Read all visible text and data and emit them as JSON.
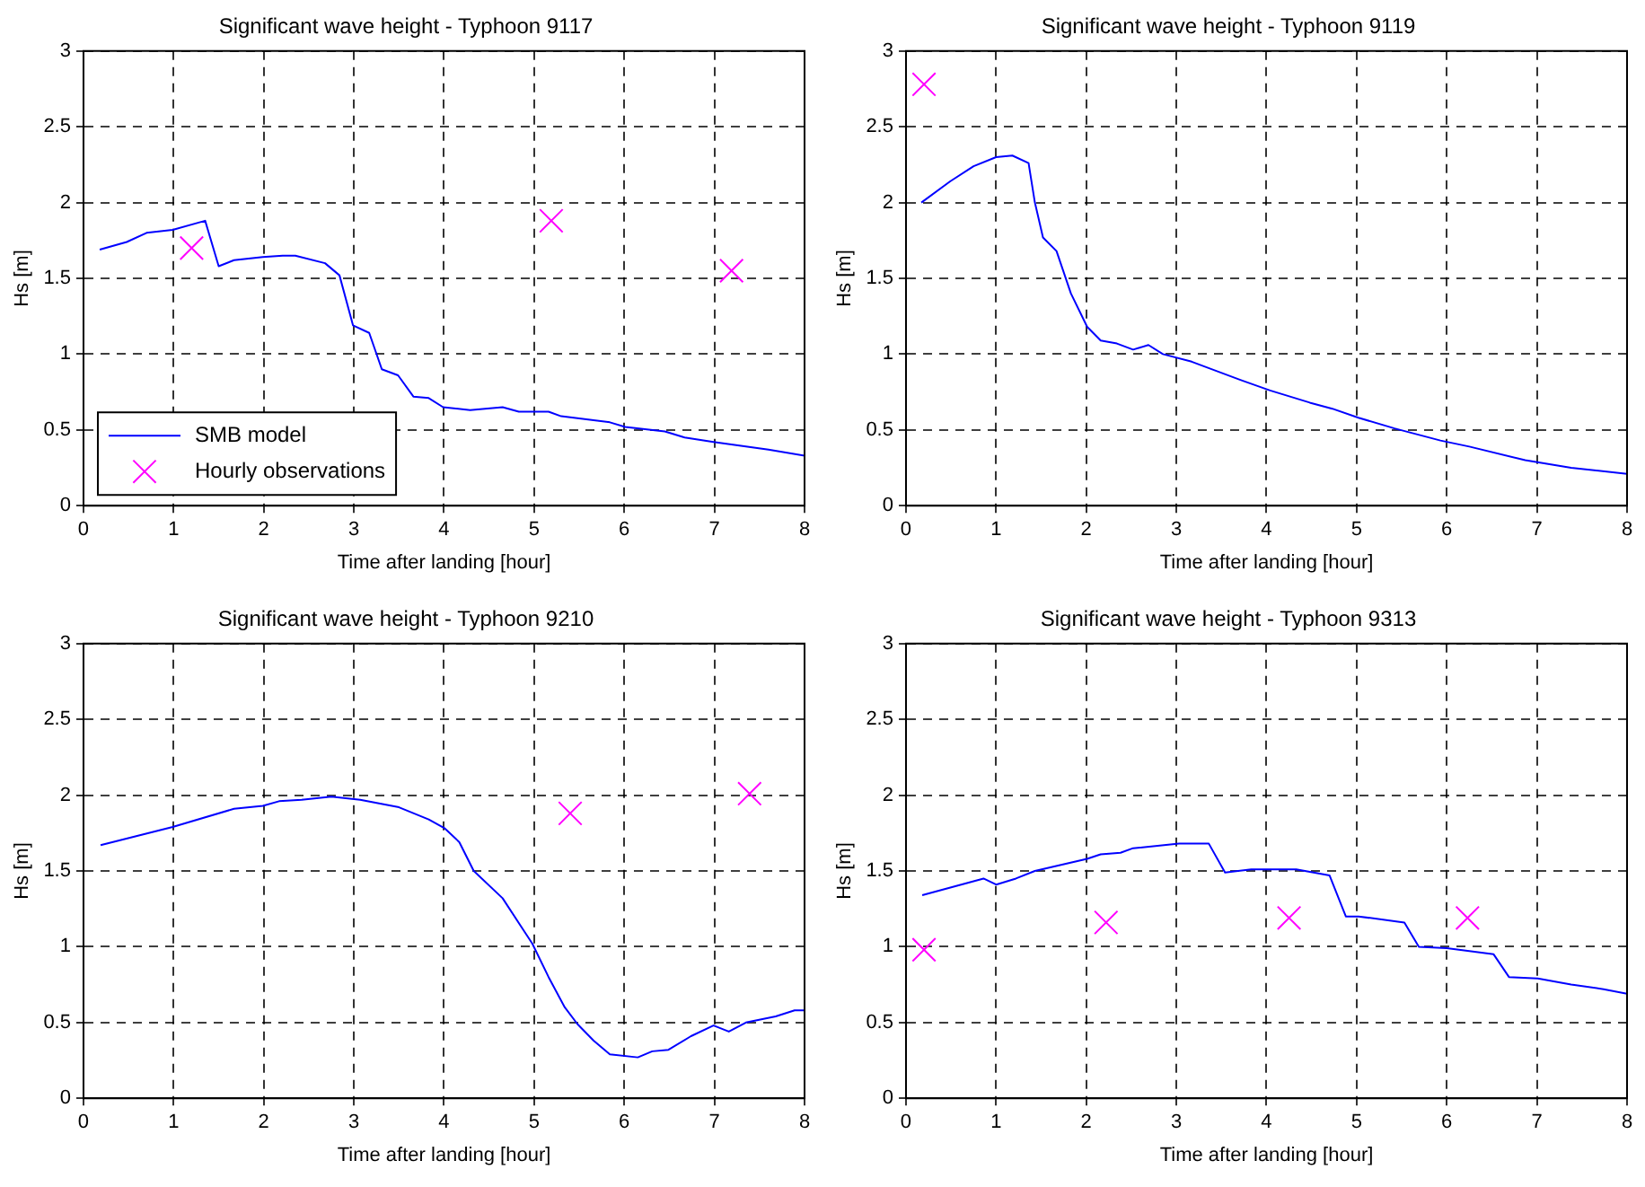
{
  "chart_data": [
    {
      "type": "line",
      "title": "Significant wave height - Typhoon 9117",
      "xlabel": "Time after landing [hour]",
      "ylabel": "Hs [m]",
      "xlim": [
        0,
        8
      ],
      "xticks": [
        0,
        1,
        2,
        3,
        4,
        5,
        6,
        7,
        8
      ],
      "ylim": [
        0,
        3
      ],
      "yticks": [
        0,
        0.5,
        1,
        1.5,
        2,
        2.5,
        3
      ],
      "grid": true,
      "legend": "bottom left",
      "series": [
        {
          "name": "SMB model",
          "color": "#0000ff",
          "marker": "none",
          "x": [
            0.18,
            0.48,
            0.7,
            0.99,
            1.35,
            1.5,
            1.67,
            1.99,
            2.21,
            2.35,
            2.68,
            2.84,
            2.99,
            3.17,
            3.31,
            3.49,
            3.66,
            3.83,
            3.99,
            4.29,
            4.65,
            4.83,
            5.16,
            5.3,
            5.84,
            6.01,
            6.45,
            6.67,
            6.99,
            7.6,
            8.0
          ],
          "values": [
            1.69,
            1.74,
            1.8,
            1.82,
            1.88,
            1.58,
            1.62,
            1.64,
            1.65,
            1.65,
            1.6,
            1.52,
            1.19,
            1.14,
            0.9,
            0.86,
            0.72,
            0.71,
            0.65,
            0.63,
            0.65,
            0.62,
            0.62,
            0.59,
            0.55,
            0.52,
            0.49,
            0.45,
            0.42,
            0.37,
            0.33
          ]
        },
        {
          "name": "Hourly observations",
          "type": "scatter",
          "color": "#ff00ff",
          "marker": "cross",
          "x": [
            1.2,
            5.19,
            7.19
          ],
          "values": [
            1.7,
            1.88,
            1.55
          ]
        }
      ]
    },
    {
      "type": "line",
      "title": "Significant wave height - Typhoon 9119",
      "xlabel": "Time after landing [hour]",
      "ylabel": "Hs [m]",
      "xlim": [
        0,
        8
      ],
      "xticks": [
        0,
        1,
        2,
        3,
        4,
        5,
        6,
        7,
        8
      ],
      "ylim": [
        0,
        3
      ],
      "yticks": [
        0,
        0.5,
        1,
        1.5,
        2,
        2.5,
        3
      ],
      "grid": true,
      "legend": false,
      "series": [
        {
          "color": "#0000ff",
          "marker": "none",
          "x": [
            0.17,
            0.49,
            0.75,
            1.0,
            1.18,
            1.36,
            1.43,
            1.52,
            1.67,
            1.83,
            2.01,
            2.16,
            2.34,
            2.52,
            2.69,
            2.85,
            3.17,
            3.71,
            4.04,
            4.48,
            4.73,
            5.02,
            5.42,
            5.93,
            6.25,
            6.87,
            7.38,
            8.0
          ],
          "values": [
            2.0,
            2.14,
            2.24,
            2.3,
            2.31,
            2.26,
            2.0,
            1.77,
            1.68,
            1.4,
            1.18,
            1.09,
            1.07,
            1.03,
            1.06,
            1.0,
            0.95,
            0.83,
            0.76,
            0.68,
            0.64,
            0.58,
            0.51,
            0.43,
            0.39,
            0.3,
            0.25,
            0.21
          ]
        },
        {
          "type": "scatter",
          "color": "#ff00ff",
          "marker": "cross",
          "x": [
            0.2
          ],
          "values": [
            2.78
          ]
        }
      ]
    },
    {
      "type": "line",
      "title": "Significant wave height - Typhoon 9210",
      "xlabel": "Time after landing [hour]",
      "ylabel": "Hs [m]",
      "xlim": [
        0,
        8
      ],
      "xticks": [
        0,
        1,
        2,
        3,
        4,
        5,
        6,
        7,
        8
      ],
      "ylim": [
        0,
        3
      ],
      "yticks": [
        0,
        0.5,
        1,
        1.5,
        2,
        2.5,
        3
      ],
      "grid": true,
      "legend": false,
      "series": [
        {
          "color": "#0000ff",
          "marker": "none",
          "x": [
            0.19,
            0.99,
            1.67,
            1.99,
            2.17,
            2.42,
            2.75,
            3.07,
            3.5,
            3.83,
            4.01,
            4.17,
            4.33,
            4.65,
            4.98,
            5.16,
            5.34,
            5.48,
            5.66,
            5.84,
            6.15,
            6.31,
            6.49,
            6.74,
            6.99,
            7.16,
            7.35,
            7.68,
            7.89,
            8.0
          ],
          "values": [
            1.67,
            1.79,
            1.91,
            1.93,
            1.96,
            1.97,
            1.99,
            1.97,
            1.92,
            1.84,
            1.78,
            1.69,
            1.5,
            1.32,
            1.02,
            0.8,
            0.6,
            0.49,
            0.38,
            0.29,
            0.27,
            0.31,
            0.32,
            0.41,
            0.48,
            0.44,
            0.5,
            0.54,
            0.58,
            0.58
          ]
        },
        {
          "type": "scatter",
          "color": "#ff00ff",
          "marker": "cross",
          "x": [
            5.4,
            7.39
          ],
          "values": [
            1.88,
            2.01
          ]
        }
      ]
    },
    {
      "type": "line",
      "title": "Significant wave height - Typhoon 9313",
      "xlabel": "Time after landing [hour]",
      "ylabel": "Hs [m]",
      "xlim": [
        0,
        8
      ],
      "xticks": [
        0,
        1,
        2,
        3,
        4,
        5,
        6,
        7,
        8
      ],
      "ylim": [
        0,
        3
      ],
      "yticks": [
        0,
        0.5,
        1,
        1.5,
        2,
        2.5,
        3
      ],
      "grid": true,
      "legend": false,
      "series": [
        {
          "color": "#0000ff",
          "marker": "none",
          "x": [
            0.18,
            0.86,
            1.0,
            1.22,
            1.43,
            2.01,
            2.16,
            2.38,
            2.52,
            3.03,
            3.36,
            3.54,
            3.83,
            4.33,
            4.7,
            4.88,
            5.02,
            5.53,
            5.69,
            6.0,
            6.52,
            6.69,
            7.01,
            7.38,
            7.74,
            8.0
          ],
          "values": [
            1.34,
            1.45,
            1.41,
            1.45,
            1.5,
            1.58,
            1.61,
            1.62,
            1.65,
            1.68,
            1.68,
            1.49,
            1.51,
            1.51,
            1.47,
            1.2,
            1.2,
            1.16,
            1.0,
            0.99,
            0.95,
            0.8,
            0.79,
            0.75,
            0.72,
            0.69
          ]
        },
        {
          "type": "scatter",
          "color": "#ff00ff",
          "marker": "cross",
          "x": [
            0.2,
            2.22,
            4.25,
            6.23
          ],
          "values": [
            0.98,
            1.16,
            1.19,
            1.19
          ]
        }
      ]
    }
  ]
}
